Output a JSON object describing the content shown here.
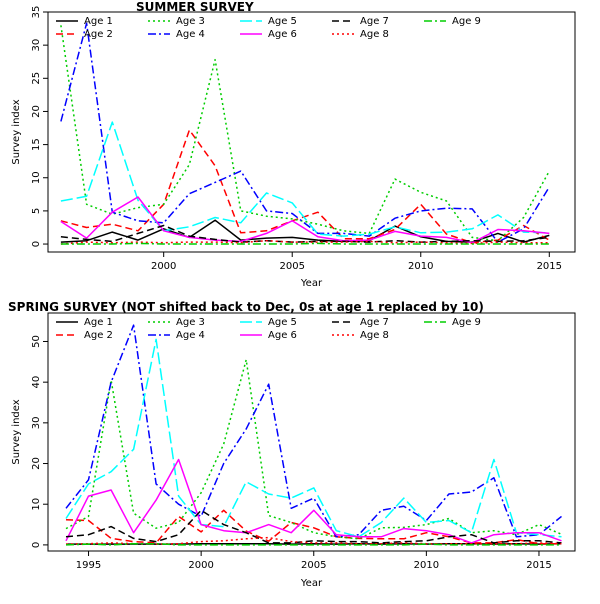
{
  "chart_data": [
    {
      "type": "line",
      "title": "SUMMER SURVEY",
      "xlabel": "Year",
      "ylabel": "Survey index",
      "xlim": [
        1995.5,
        2016.0
      ],
      "ylim": [
        -1.2,
        35.0
      ],
      "xticks": [
        2000,
        2005,
        2010,
        2015
      ],
      "yticks": [
        0,
        5,
        10,
        15,
        20,
        25,
        30,
        35
      ],
      "legend_position": "top-left",
      "x": [
        1996,
        1997,
        1998,
        1999,
        2000,
        2001,
        2002,
        2003,
        2004,
        2005,
        2006,
        2007,
        2008,
        2009,
        2010,
        2011,
        2012,
        2013,
        2014,
        2015
      ],
      "series": [
        {
          "name": "Age 1",
          "color": "#000000",
          "dash": "solid",
          "values": [
            0.3,
            0.5,
            1.8,
            0.6,
            2.3,
            1.0,
            3.6,
            0.6,
            0.9,
            1.0,
            0.6,
            0.4,
            0.5,
            2.7,
            1.1,
            0.4,
            0.3,
            1.6,
            0.3,
            1.3
          ]
        },
        {
          "name": "Age 2",
          "color": "#FF0000",
          "dash": "dashed",
          "values": [
            3.5,
            2.5,
            3.0,
            2.0,
            6.0,
            17.2,
            11.8,
            1.7,
            2.0,
            3.5,
            4.8,
            0.8,
            0.8,
            2.2,
            6.0,
            1.5,
            0.2,
            0.6,
            2.8,
            0.6
          ]
        },
        {
          "name": "Age 3",
          "color": "#00CD00",
          "dash": "dotted",
          "values": [
            33.0,
            6.0,
            4.5,
            5.5,
            6.0,
            12.0,
            27.8,
            5.0,
            4.2,
            3.8,
            3.0,
            2.0,
            1.6,
            9.8,
            7.8,
            6.5,
            1.0,
            0.5,
            4.0,
            11.0
          ]
        },
        {
          "name": "Age 4",
          "color": "#0000FF",
          "dash": "dashdot",
          "values": [
            18.5,
            33.3,
            4.8,
            3.5,
            3.2,
            7.6,
            9.3,
            11.0,
            5.0,
            4.6,
            1.6,
            1.6,
            1.2,
            3.9,
            5.0,
            5.4,
            5.3,
            0.3,
            2.3,
            8.6
          ]
        },
        {
          "name": "Age 5",
          "color": "#00FFFF",
          "dash": "longdash",
          "values": [
            6.5,
            7.2,
            18.4,
            6.6,
            2.0,
            2.6,
            4.0,
            3.2,
            7.7,
            6.2,
            1.5,
            1.2,
            1.5,
            2.6,
            1.7,
            1.8,
            2.3,
            4.4,
            1.8,
            1.7
          ]
        },
        {
          "name": "Age 6",
          "color": "#FF00FF",
          "dash": "solid",
          "values": [
            3.4,
            0.9,
            4.8,
            7.1,
            2.0,
            1.0,
            0.6,
            0.4,
            1.6,
            3.5,
            1.1,
            0.5,
            0.6,
            1.9,
            1.2,
            1.0,
            0.2,
            2.2,
            2.0,
            1.6
          ]
        },
        {
          "name": "Age 7",
          "color": "#000000",
          "dash": "dashed",
          "values": [
            1.1,
            0.7,
            0.4,
            1.6,
            2.8,
            1.2,
            0.7,
            0.3,
            0.5,
            0.3,
            0.4,
            0.4,
            0.3,
            0.5,
            0.3,
            0.4,
            0.5,
            0.4,
            0.5,
            1.0
          ]
        },
        {
          "name": "Age 8",
          "color": "#FF0000",
          "dash": "dotted",
          "values": [
            0.0,
            0.3,
            0.2,
            0.3,
            0.2,
            0.3,
            0.3,
            0.2,
            0.5,
            0.3,
            0.3,
            0.3,
            0.4,
            0.2,
            0.3,
            0.2,
            0.1,
            0.3,
            0.2,
            0.2
          ]
        },
        {
          "name": "Age 9",
          "color": "#00CD00",
          "dash": "dashdot",
          "values": [
            0.0,
            0.0,
            0.0,
            0.1,
            0.0,
            0.0,
            0.0,
            0.0,
            0.0,
            0.0,
            0.1,
            0.0,
            0.0,
            0.0,
            0.0,
            0.0,
            0.0,
            0.0,
            0.0,
            0.0
          ]
        }
      ]
    },
    {
      "type": "line",
      "title": "SPRING   SURVEY  (NOT shifted back to Dec, 0s at age 1 replaced by 10)",
      "xlabel": "Year",
      "ylabel": "Survey index",
      "xlim": [
        1993.2,
        2016.6
      ],
      "ylim": [
        -1.5,
        57.0
      ],
      "xticks": [
        1995,
        2000,
        2005,
        2010,
        2015
      ],
      "yticks": [
        0,
        10,
        20,
        30,
        40,
        50
      ],
      "legend_position": "top-left",
      "x": [
        1994,
        1995,
        1996,
        1997,
        1998,
        1999,
        2000,
        2001,
        2002,
        2003,
        2004,
        2005,
        2006,
        2007,
        2008,
        2009,
        2010,
        2011,
        2012,
        2013,
        2014,
        2015,
        2016
      ],
      "series": [
        {
          "name": "Age 1",
          "color": "#000000",
          "dash": "solid",
          "values": [
            0.2,
            0.2,
            0.2,
            0.2,
            0.2,
            0.2,
            0.3,
            0.3,
            0.3,
            0.3,
            0.2,
            0.3,
            0.2,
            0.3,
            0.2,
            0.3,
            0.2,
            0.3,
            0.3,
            0.2,
            0.3,
            0.2,
            0.3
          ]
        },
        {
          "name": "Age 2",
          "color": "#FF0000",
          "dash": "dashed",
          "values": [
            6.2,
            6.0,
            1.6,
            0.8,
            0.5,
            7.0,
            3.2,
            8.5,
            3.4,
            0.9,
            5.5,
            4.2,
            2.0,
            1.6,
            1.5,
            1.5,
            3.0,
            2.0,
            0.5,
            0.5,
            1.3,
            0.3,
            0.3
          ]
        },
        {
          "name": "Age 3",
          "color": "#00CD00",
          "dash": "dotted",
          "values": [
            4.0,
            7.0,
            40.5,
            7.8,
            4.1,
            5.5,
            12.8,
            24.8,
            45.5,
            7.2,
            5.5,
            3.0,
            2.0,
            1.5,
            4.2,
            4.3,
            5.0,
            6.5,
            3.0,
            3.5,
            2.5,
            5.0,
            2.6
          ]
        },
        {
          "name": "Age 4",
          "color": "#0000FF",
          "dash": "dashdot",
          "values": [
            9.0,
            16.0,
            40.0,
            54.0,
            15.0,
            10.0,
            7.0,
            20.0,
            28.5,
            39.5,
            9.0,
            11.5,
            2.0,
            2.5,
            8.5,
            9.5,
            6.0,
            12.5,
            13.0,
            16.5,
            2.0,
            2.5,
            7.0
          ]
        },
        {
          "name": "Age 5",
          "color": "#00FFFF",
          "dash": "longdash",
          "values": [
            6.5,
            15.0,
            18.0,
            23.5,
            50.5,
            12.0,
            5.0,
            4.5,
            15.5,
            12.5,
            11.5,
            14.0,
            3.5,
            2.0,
            5.5,
            11.5,
            5.5,
            6.0,
            3.0,
            21.0,
            3.0,
            2.5,
            2.0
          ]
        },
        {
          "name": "Age 6",
          "color": "#FF00FF",
          "dash": "solid",
          "values": [
            1.0,
            12.0,
            13.5,
            3.0,
            11.0,
            21.0,
            5.0,
            3.5,
            3.0,
            5.0,
            3.0,
            8.5,
            2.5,
            2.0,
            2.0,
            4.0,
            3.5,
            2.5,
            0.5,
            2.5,
            3.0,
            3.0,
            1.0
          ]
        },
        {
          "name": "Age 7",
          "color": "#000000",
          "dash": "dashed",
          "values": [
            2.0,
            2.5,
            4.5,
            1.6,
            0.8,
            2.5,
            8.5,
            5.0,
            3.0,
            0.5,
            0.5,
            1.0,
            0.8,
            0.8,
            0.5,
            0.8,
            1.0,
            2.0,
            2.5,
            0.5,
            1.0,
            1.0,
            0.5
          ]
        },
        {
          "name": "Age 8",
          "color": "#FF0000",
          "dash": "dotted",
          "values": [
            0.2,
            0.3,
            0.5,
            0.3,
            0.2,
            0.3,
            0.8,
            1.0,
            1.5,
            1.8,
            0.8,
            0.5,
            0.5,
            0.3,
            0.3,
            0.5,
            0.3,
            0.3,
            0.3,
            0.3,
            0.3,
            0.5,
            0.3
          ]
        },
        {
          "name": "Age 9",
          "color": "#00CD00",
          "dash": "dashdot",
          "values": [
            0.0,
            0.2,
            0.0,
            0.3,
            0.3,
            0.0,
            0.0,
            0.0,
            0.0,
            0.0,
            0.0,
            0.0,
            0.0,
            0.0,
            0.0,
            0.0,
            0.2,
            0.0,
            0.0,
            0.0,
            0.0,
            0.0,
            0.0
          ]
        }
      ]
    }
  ]
}
